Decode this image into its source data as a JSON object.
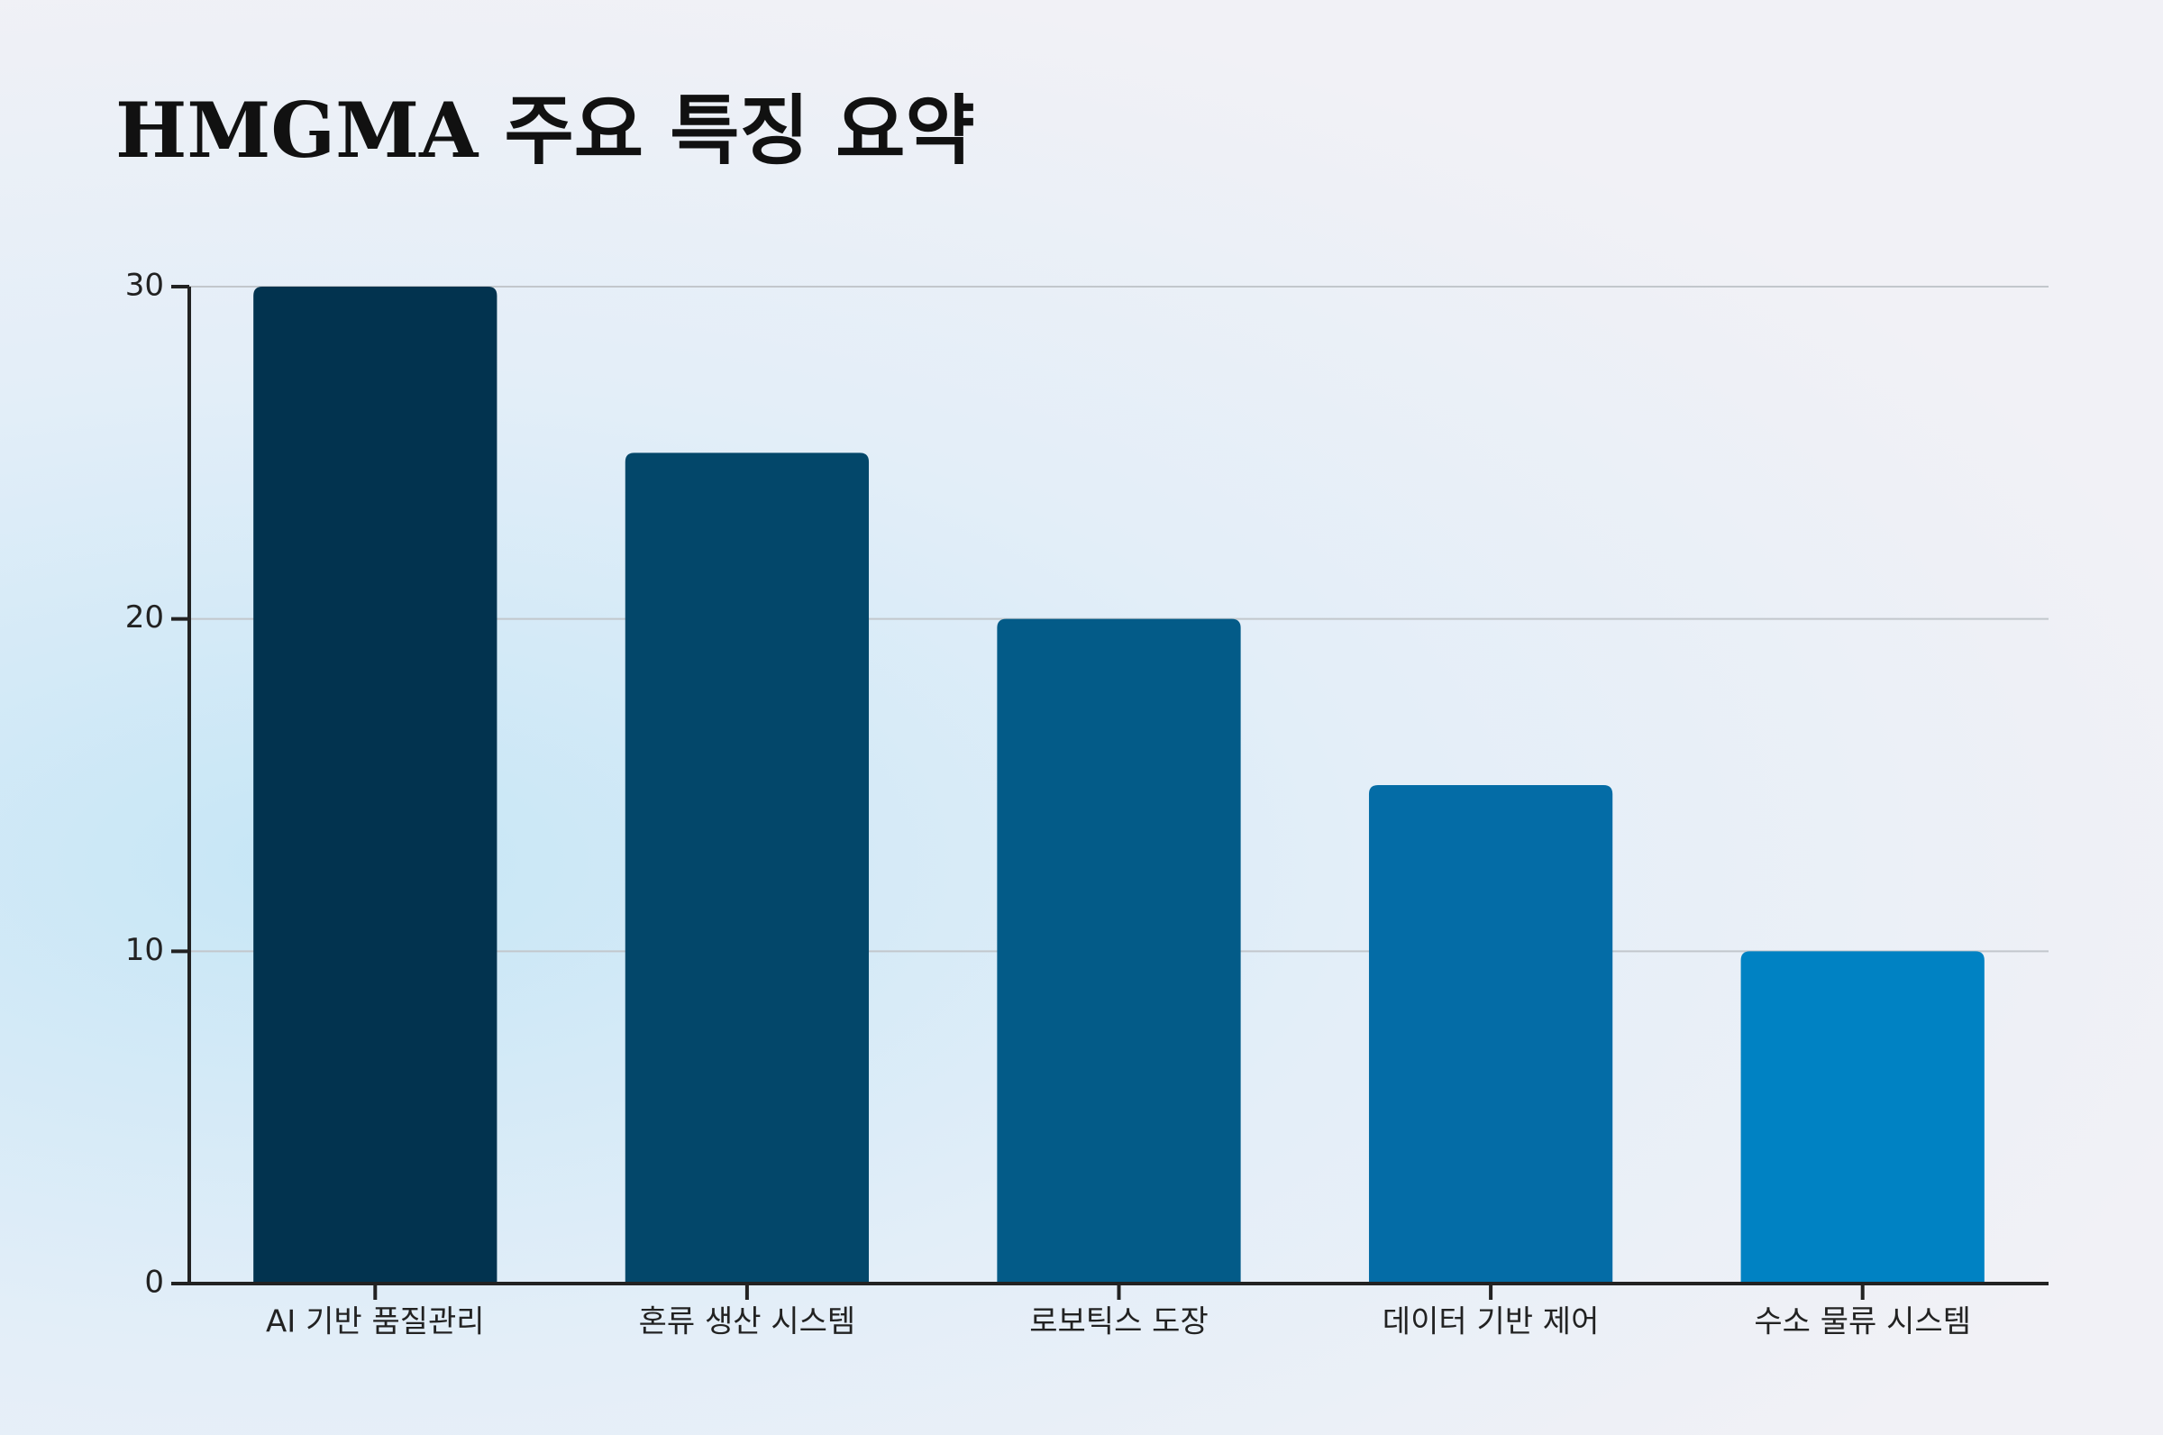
{
  "chart_data": {
    "type": "bar",
    "title": "HMGMA 주요 특징 요약",
    "categories": [
      "AI 기반 품질관리",
      "혼류 생산 시스템",
      "로보틱스 도장",
      "데이터 기반 제어",
      "수소 물류 시스템"
    ],
    "values": [
      30,
      25,
      20,
      15,
      10
    ],
    "colors": [
      "#02334f",
      "#03476a",
      "#035b88",
      "#046ca6",
      "#0082c3"
    ],
    "ylim": [
      0,
      30
    ],
    "yticks": [
      0,
      10,
      20,
      30
    ],
    "grid": true
  }
}
